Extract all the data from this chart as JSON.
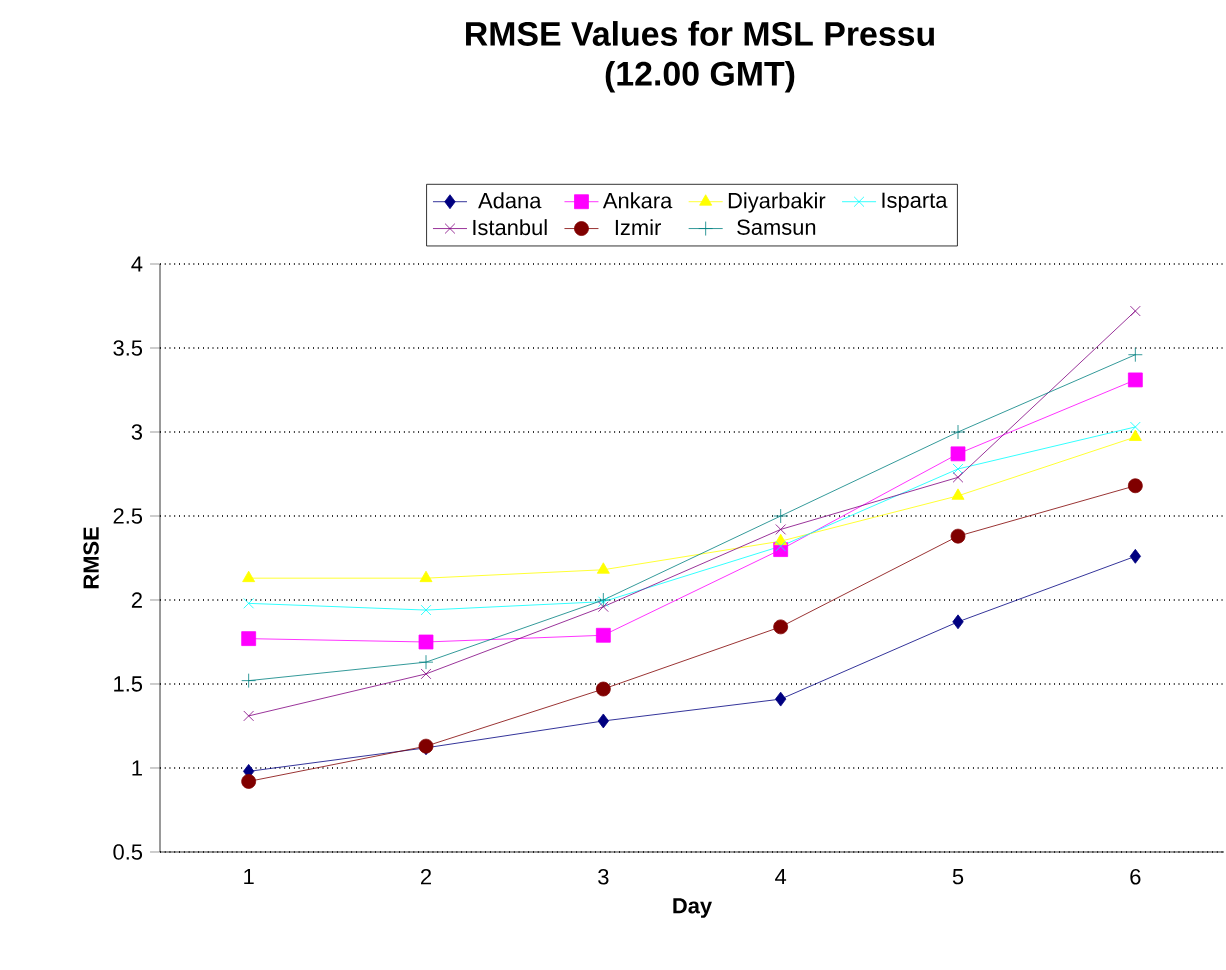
{
  "chart_data": {
    "type": "line",
    "title": "RMSE Values for MSL Pressu",
    "subtitle": "(12.00 GMT)",
    "xlabel": "Day",
    "ylabel": "RMSE",
    "categories": [
      "1",
      "2",
      "3",
      "4",
      "5",
      "6"
    ],
    "series": [
      {
        "name": "Adana",
        "color": "#000080",
        "marker": "diamond",
        "values": [
          0.98,
          1.12,
          1.28,
          1.41,
          1.87,
          2.26
        ]
      },
      {
        "name": "Ankara",
        "color": "#ff00ff",
        "marker": "square",
        "values": [
          1.77,
          1.75,
          1.79,
          2.3,
          2.87,
          3.31
        ]
      },
      {
        "name": "Diyarbakir",
        "color": "#ffff00",
        "marker": "triangle",
        "values": [
          2.13,
          2.13,
          2.18,
          2.35,
          2.62,
          2.97
        ]
      },
      {
        "name": "Isparta",
        "color": "#00ffff",
        "marker": "cross",
        "values": [
          1.98,
          1.94,
          1.99,
          2.32,
          2.78,
          3.03
        ]
      },
      {
        "name": "Istanbul",
        "color": "#800080",
        "marker": "cross",
        "values": [
          1.31,
          1.56,
          1.96,
          2.42,
          2.73,
          3.72
        ]
      },
      {
        "name": "Izmir",
        "color": "#800000",
        "marker": "circle",
        "values": [
          0.92,
          1.13,
          1.47,
          1.84,
          2.38,
          2.68
        ]
      },
      {
        "name": "Samsun",
        "color": "#008080",
        "marker": "plus",
        "values": [
          1.52,
          1.63,
          2.0,
          2.5,
          3.0,
          3.46
        ]
      }
    ],
    "ylim": [
      0.5,
      4
    ],
    "yticks": [
      0.5,
      1,
      1.5,
      2,
      2.5,
      3,
      3.5,
      4
    ],
    "grid": "y",
    "legend": "top",
    "line_style": "solid"
  }
}
